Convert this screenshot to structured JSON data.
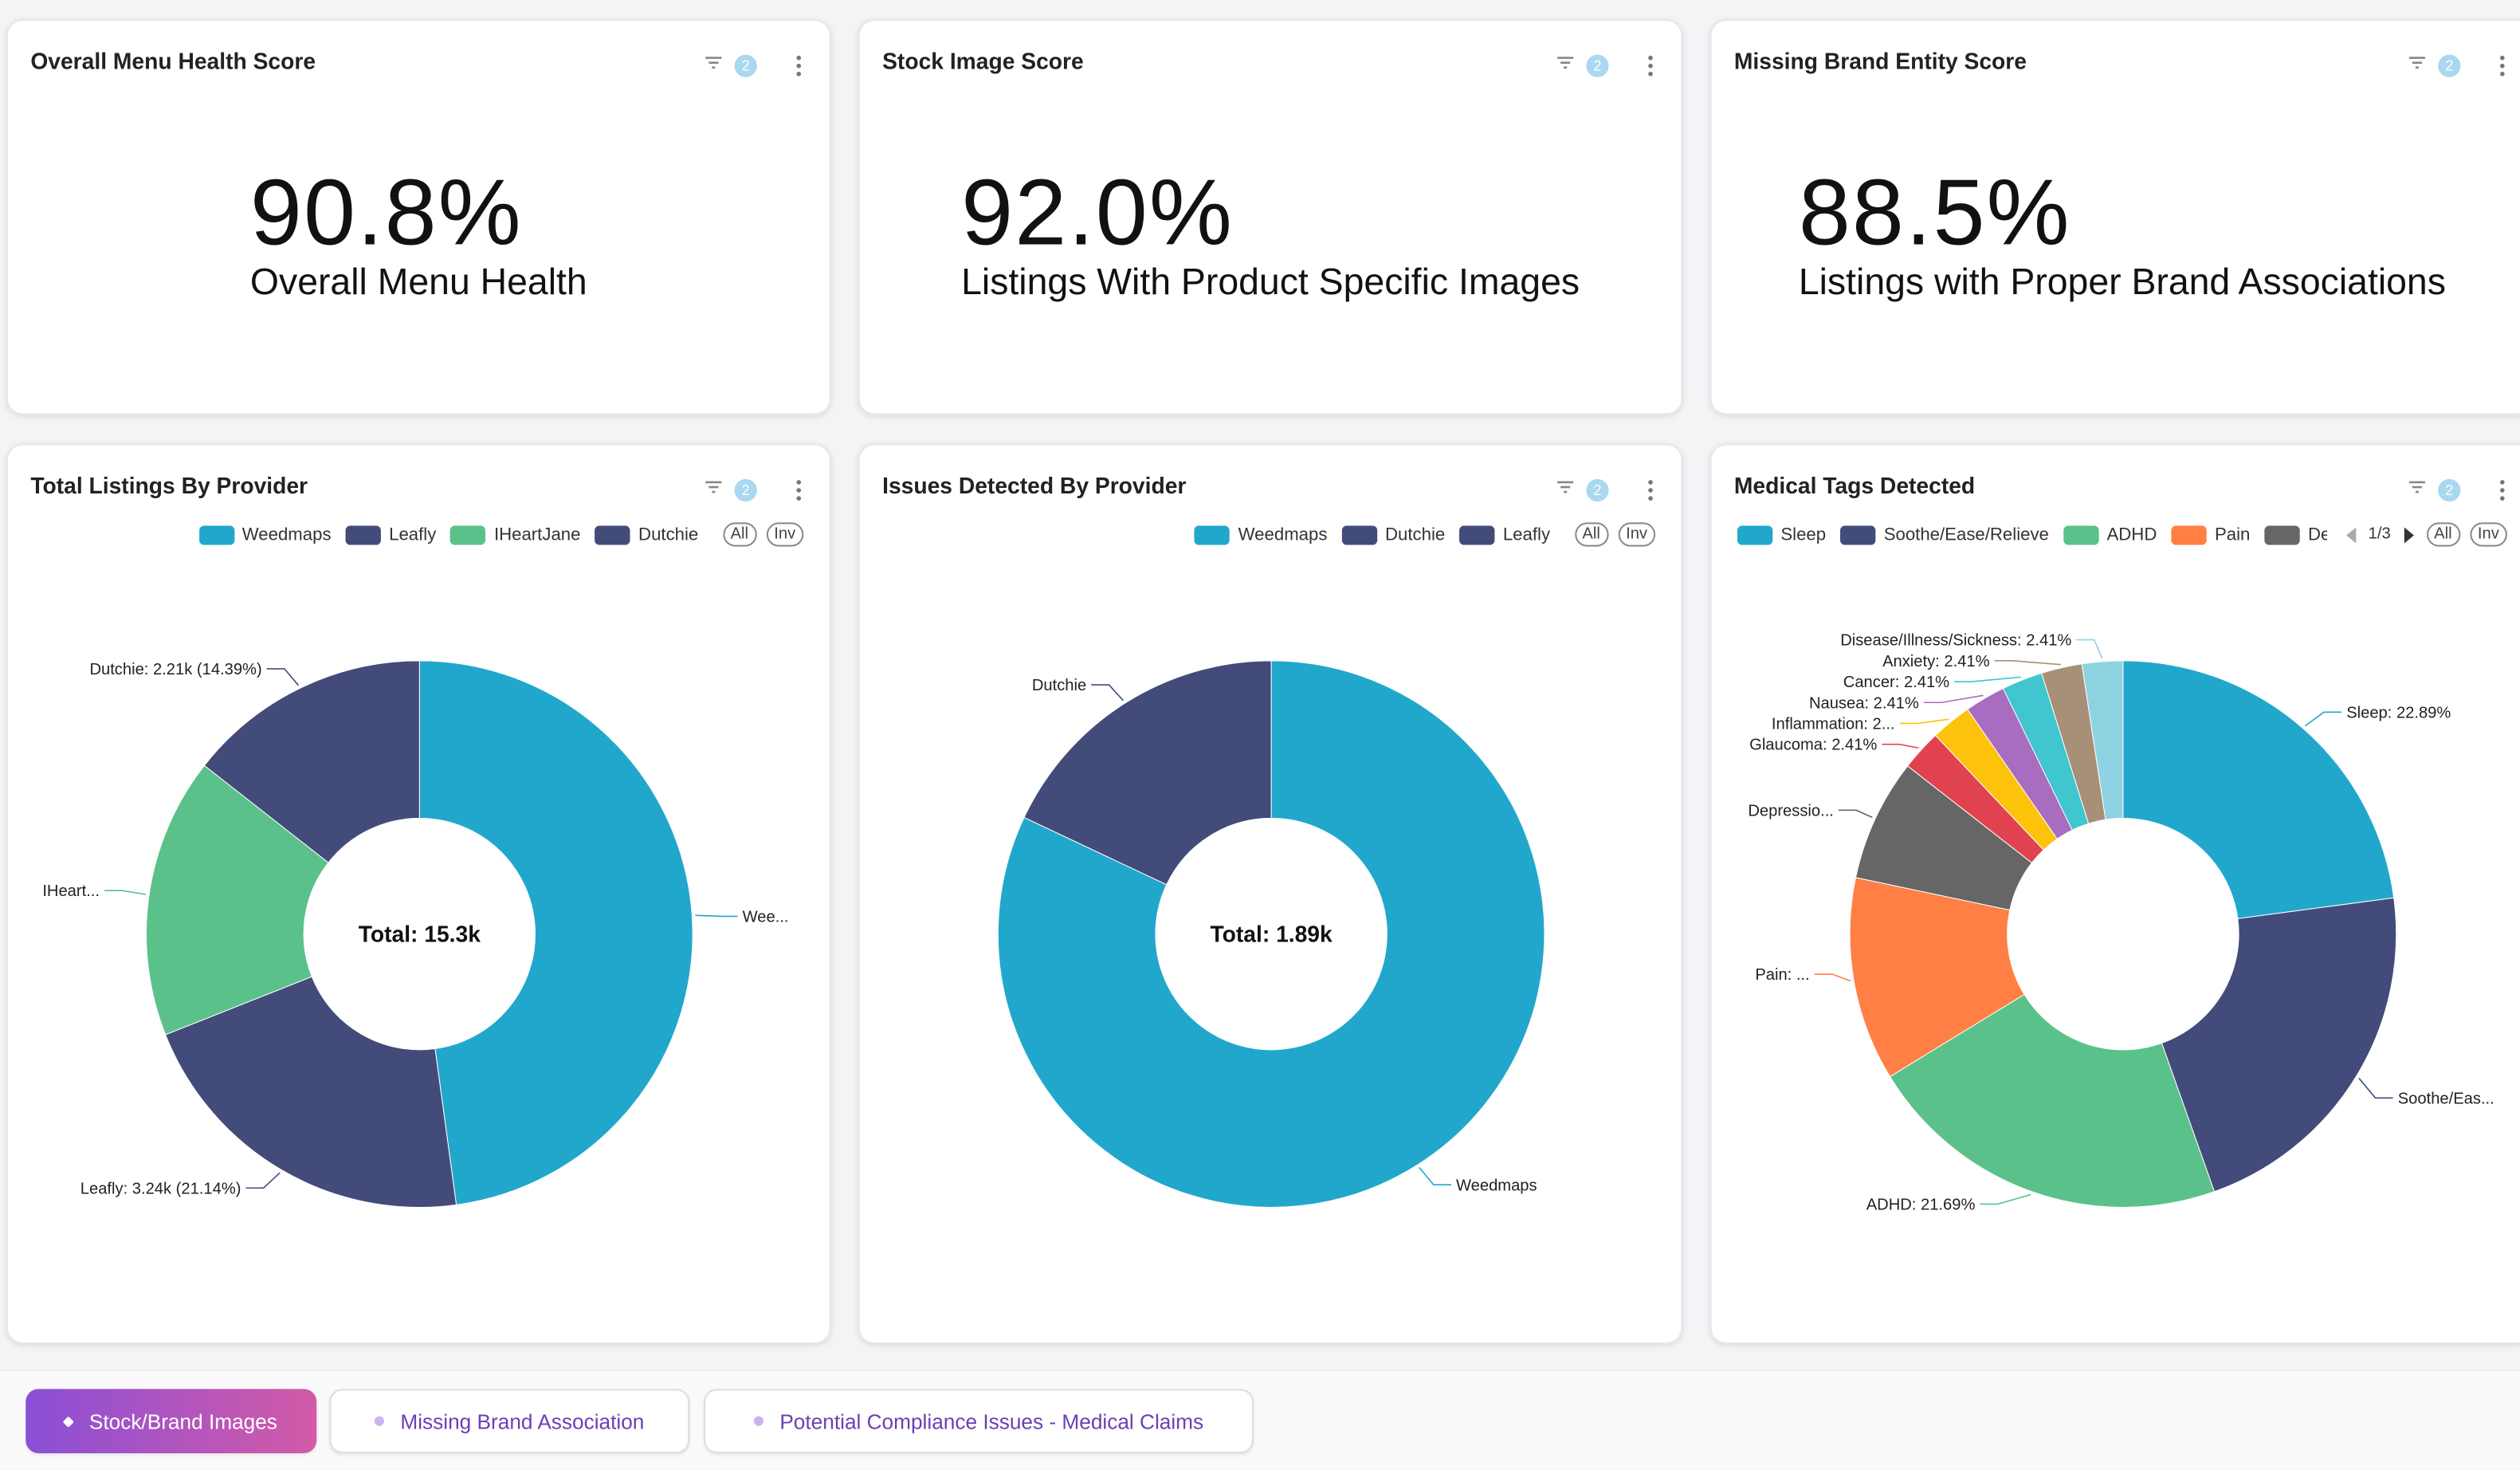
{
  "kpis": [
    {
      "title": "Overall Menu Health Score",
      "filter_badge": "2",
      "value": "90.8%",
      "label": "Overall Menu Health"
    },
    {
      "title": "Stock Image Score",
      "filter_badge": "2",
      "value": "92.0%",
      "label": "Listings With Product Specific Images"
    },
    {
      "title": "Missing Brand Entity Score",
      "filter_badge": "2",
      "value": "88.5%",
      "label": "Listings with Proper Brand Associations"
    }
  ],
  "chart_data": [
    {
      "type": "donut",
      "title": "Total Listings By Provider",
      "filter_badge": "2",
      "categories": [
        "Weedmaps",
        "Leafly",
        "IHeartJane",
        "Dutchie"
      ],
      "values": [
        7.33,
        3.24,
        2.54,
        2.21
      ],
      "value_labels": [
        "Wee...",
        "Leafly: 3.24k (21.14%)",
        "IHeart...",
        "Dutchie: 2.21k (14.39%)"
      ],
      "colors": [
        "#22a7cc",
        "#434b7a",
        "#5bc18a",
        "#434b7a"
      ],
      "center_label": "Total: 15.3k",
      "legend_controls": [
        "All",
        "Inv"
      ]
    },
    {
      "type": "donut",
      "title": "Issues Detected By Provider",
      "filter_badge": "2",
      "categories": [
        "Weedmaps",
        "Dutchie",
        "Leafly"
      ],
      "values": [
        1.55,
        0.34,
        0
      ],
      "value_labels": [
        "Weedmaps",
        "Dutchie",
        null
      ],
      "colors": [
        "#22a7cc",
        "#434b7a",
        "#434b7a"
      ],
      "center_label": "Total: 1.89k",
      "legend_controls": [
        "All",
        "Inv"
      ]
    },
    {
      "type": "donut",
      "title": "Medical Tags Detected",
      "filter_badge": "2",
      "categories": [
        "Sleep",
        "Soothe/Ease/Relieve",
        "ADHD",
        "Pain",
        "Depression",
        "Glaucoma",
        "Inflammation",
        "Nausea",
        "Cancer",
        "Anxiety",
        "Disease/Illness/Sickness"
      ],
      "values": [
        22.89,
        21.69,
        21.69,
        12.05,
        7.23,
        2.41,
        2.41,
        2.41,
        2.41,
        2.41,
        2.41
      ],
      "value_labels": [
        "Sleep: 22.89%",
        "Soothe/Eas...",
        "ADHD: 21.69%",
        "Pain: ...",
        "Depressio...",
        "Glaucoma: 2.41%",
        "Inflammation: 2...",
        "Nausea: 2.41%",
        "Cancer: 2.41%",
        "Anxiety: 2.41%",
        "Disease/Illness/Sickness: 2.41%"
      ],
      "colors": [
        "#22a7cc",
        "#434b7a",
        "#5bc18a",
        "#ff7f45",
        "#666666",
        "#e0434f",
        "#fcc30a",
        "#a86cc0",
        "#3fc6cf",
        "#a89078",
        "#8fd3e3"
      ],
      "center_label": null,
      "legend_page": "1/3",
      "legend_controls": [
        "All",
        "Inv"
      ]
    }
  ],
  "tabs": [
    {
      "label": "Stock/Brand Images",
      "active": true
    },
    {
      "label": "Missing Brand Association",
      "active": false
    },
    {
      "label": "Potential Compliance Issues - Medical Claims",
      "active": false
    }
  ]
}
